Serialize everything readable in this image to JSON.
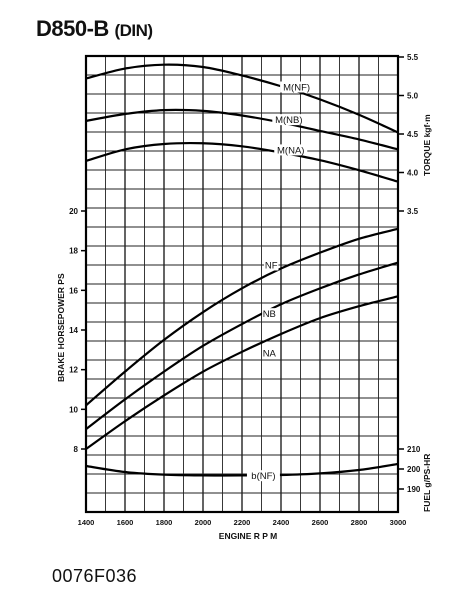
{
  "title": "D850-B",
  "title_suffix": "(DIN)",
  "caption": "0076F036",
  "chart_data": {
    "type": "line",
    "xlabel": "ENGINE R P M",
    "xlim": [
      1400,
      3000
    ],
    "x_ticks": [
      "1400",
      "1600",
      "1800",
      "2000",
      "2200",
      "2400",
      "2600",
      "2800",
      "3000"
    ],
    "axes": {
      "torque": {
        "label": "TORQUE kgf·m",
        "ylim": [
          3.5,
          5.5
        ],
        "ticks": [
          "5.5",
          "5.0",
          "4.5",
          "4.0",
          "3.5"
        ]
      },
      "power": {
        "label": "BRAKE HORSEPOWER PS",
        "ylim": [
          8,
          20
        ],
        "ticks": [
          "20",
          "18",
          "16",
          "14",
          "12",
          "10",
          "8"
        ]
      },
      "fuel": {
        "label": "FUEL g/PS-HR",
        "ylim": [
          190,
          210
        ],
        "ticks": [
          "210",
          "200",
          "190"
        ]
      }
    },
    "series": [
      {
        "name": "M(NF)",
        "axis": "torque",
        "x": [
          1400,
          1600,
          1800,
          2000,
          2200,
          2400,
          2600,
          2800,
          3000
        ],
        "y": [
          5.22,
          5.35,
          5.4,
          5.37,
          5.26,
          5.12,
          4.95,
          4.75,
          4.52
        ]
      },
      {
        "name": "M(NB)",
        "axis": "torque",
        "x": [
          1400,
          1600,
          1800,
          2000,
          2200,
          2400,
          2600,
          2800,
          3000
        ],
        "y": [
          4.67,
          4.76,
          4.81,
          4.8,
          4.74,
          4.65,
          4.54,
          4.43,
          4.3
        ]
      },
      {
        "name": "M(NA)",
        "axis": "torque",
        "x": [
          1400,
          1600,
          1800,
          2000,
          2200,
          2400,
          2600,
          2800,
          3000
        ],
        "y": [
          4.15,
          4.3,
          4.37,
          4.38,
          4.34,
          4.26,
          4.16,
          4.03,
          3.88
        ]
      },
      {
        "name": "NF",
        "axis": "power",
        "x": [
          1400,
          1600,
          1800,
          2000,
          2200,
          2400,
          2600,
          2800,
          3000
        ],
        "y": [
          10.2,
          11.9,
          13.5,
          14.9,
          16.1,
          17.1,
          17.9,
          18.6,
          19.1
        ]
      },
      {
        "name": "NB",
        "axis": "power",
        "x": [
          1400,
          1600,
          1800,
          2000,
          2200,
          2400,
          2600,
          2800,
          3000
        ],
        "y": [
          9.0,
          10.5,
          11.9,
          13.2,
          14.3,
          15.3,
          16.1,
          16.8,
          17.4
        ]
      },
      {
        "name": "NA",
        "axis": "power",
        "x": [
          1400,
          1600,
          1800,
          2000,
          2200,
          2400,
          2600,
          2800,
          3000
        ],
        "y": [
          8.0,
          9.4,
          10.7,
          11.9,
          12.9,
          13.8,
          14.6,
          15.2,
          15.7
        ]
      },
      {
        "name": "b(NF)",
        "axis": "fuel",
        "x": [
          1400,
          1600,
          1800,
          2000,
          2200,
          2400,
          2600,
          2800,
          3000
        ],
        "y": [
          201.5,
          198.5,
          197.2,
          196.8,
          196.8,
          197.0,
          197.8,
          199.5,
          202.5
        ]
      }
    ],
    "grid": true
  }
}
